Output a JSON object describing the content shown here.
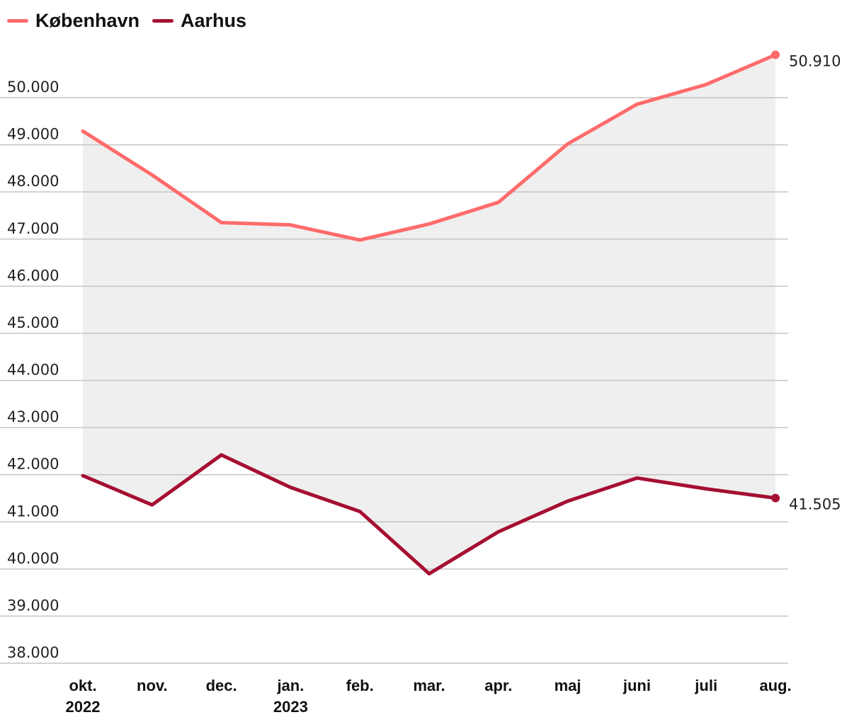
{
  "chart_data": {
    "type": "line",
    "title": "",
    "xlabel": "",
    "ylabel": "",
    "ylim": [
      38000,
      51000
    ],
    "grid": true,
    "legend_position": "top-left",
    "categories": [
      [
        "okt.",
        "2022"
      ],
      [
        "nov."
      ],
      [
        "dec."
      ],
      [
        "jan.",
        "2023"
      ],
      [
        "feb."
      ],
      [
        "mar."
      ],
      [
        "apr."
      ],
      [
        "maj"
      ],
      [
        "juni"
      ],
      [
        "juli"
      ],
      [
        "aug."
      ]
    ],
    "y_ticks": [
      {
        "value": 38000,
        "label": "38.000"
      },
      {
        "value": 39000,
        "label": "39.000"
      },
      {
        "value": 40000,
        "label": "40.000"
      },
      {
        "value": 41000,
        "label": "41.000"
      },
      {
        "value": 42000,
        "label": "42.000"
      },
      {
        "value": 43000,
        "label": "43.000"
      },
      {
        "value": 44000,
        "label": "44.000"
      },
      {
        "value": 45000,
        "label": "45.000"
      },
      {
        "value": 46000,
        "label": "46.000"
      },
      {
        "value": 47000,
        "label": "47.000"
      },
      {
        "value": 48000,
        "label": "48.000"
      },
      {
        "value": 49000,
        "label": "49.000"
      },
      {
        "value": 50000,
        "label": "50.000"
      }
    ],
    "series": [
      {
        "name": "København",
        "color": "#ff6b6b",
        "values": [
          49290,
          48360,
          47350,
          47300,
          46980,
          47320,
          47780,
          49020,
          49860,
          50280,
          50910
        ],
        "end_label": "50.910"
      },
      {
        "name": "Aarhus",
        "color": "#a50f32",
        "values": [
          41980,
          41360,
          42420,
          41730,
          41220,
          39900,
          40790,
          41440,
          41930,
          41700,
          41505
        ],
        "end_label": "41.505"
      }
    ],
    "band_fill": "#efefef"
  }
}
